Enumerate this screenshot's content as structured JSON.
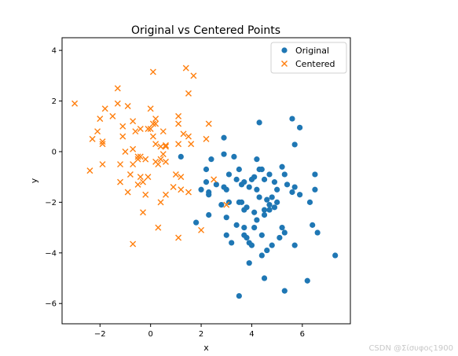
{
  "chart_data": {
    "type": "scatter",
    "title": "Original vs Centered Points",
    "xlabel": "x",
    "ylabel": "y",
    "xlim": [
      -3.5,
      7.9
    ],
    "ylim": [
      -6.8,
      4.5
    ],
    "xticks": [
      -2,
      0,
      2,
      4,
      6
    ],
    "xtick_labels": [
      "−2",
      "0",
      "2",
      "4",
      "6"
    ],
    "yticks": [
      -6,
      -4,
      -2,
      0,
      2,
      4
    ],
    "ytick_labels": [
      "−6",
      "−4",
      "−2",
      "0",
      "2",
      "4"
    ],
    "grid": false,
    "legend_position": "top-right",
    "series": [
      {
        "name": "Original",
        "marker": "circle",
        "color": "#1f77b4",
        "points": [
          [
            1.2,
            -0.2
          ],
          [
            1.8,
            -2.8
          ],
          [
            2.0,
            -1.5
          ],
          [
            2.2,
            -0.7
          ],
          [
            2.2,
            -1.2
          ],
          [
            2.3,
            -1.6
          ],
          [
            2.4,
            -0.3
          ],
          [
            2.3,
            -1.7
          ],
          [
            2.3,
            -2.5
          ],
          [
            2.6,
            -1.3
          ],
          [
            2.8,
            -2.1
          ],
          [
            2.9,
            0.55
          ],
          [
            2.9,
            -0.1
          ],
          [
            2.9,
            -1.4
          ],
          [
            3.0,
            -1.5
          ],
          [
            3.0,
            -2.6
          ],
          [
            3.0,
            -3.3
          ],
          [
            3.1,
            -2.0
          ],
          [
            3.1,
            -0.9
          ],
          [
            3.2,
            -3.6
          ],
          [
            3.3,
            -0.2
          ],
          [
            3.4,
            -1.1
          ],
          [
            3.4,
            -2.9
          ],
          [
            3.5,
            -2.0
          ],
          [
            3.5,
            -5.7
          ],
          [
            3.5,
            -0.7
          ],
          [
            3.6,
            -1.3
          ],
          [
            3.6,
            -2.0
          ],
          [
            3.7,
            -1.2
          ],
          [
            3.7,
            -2.3
          ],
          [
            3.7,
            -3.0
          ],
          [
            3.7,
            -3.3
          ],
          [
            3.8,
            -3.4
          ],
          [
            3.8,
            -2.2
          ],
          [
            3.9,
            -4.4
          ],
          [
            3.9,
            -1.4
          ],
          [
            4.0,
            -3.7
          ],
          [
            4.0,
            -1.1
          ],
          [
            4.1,
            -3.0
          ],
          [
            4.1,
            -1.0
          ],
          [
            4.1,
            -2.4
          ],
          [
            4.2,
            -0.3
          ],
          [
            4.2,
            -1.5
          ],
          [
            4.2,
            -2.7
          ],
          [
            4.3,
            1.15
          ],
          [
            4.3,
            -0.7
          ],
          [
            4.3,
            -1.8
          ],
          [
            4.4,
            -3.3
          ],
          [
            4.4,
            -4.1
          ],
          [
            4.4,
            -0.7
          ],
          [
            4.5,
            -2.3
          ],
          [
            4.5,
            -5.0
          ],
          [
            4.5,
            -1.1
          ],
          [
            4.5,
            -2.5
          ],
          [
            4.6,
            -3.9
          ],
          [
            4.6,
            -1.9
          ],
          [
            4.7,
            -0.9
          ],
          [
            4.7,
            -2.1
          ],
          [
            4.7,
            -2.3
          ],
          [
            4.8,
            -3.7
          ],
          [
            4.8,
            -1.8
          ],
          [
            4.9,
            -1.2
          ],
          [
            5.0,
            -1.5
          ],
          [
            5.0,
            -2.0
          ],
          [
            5.1,
            -3.4
          ],
          [
            5.2,
            -3.0
          ],
          [
            5.2,
            -0.6
          ],
          [
            5.3,
            -0.9
          ],
          [
            5.3,
            -3.2
          ],
          [
            5.3,
            -5.5
          ],
          [
            5.4,
            -1.3
          ],
          [
            5.6,
            1.3
          ],
          [
            5.6,
            -1.6
          ],
          [
            5.7,
            -3.7
          ],
          [
            5.7,
            0.28
          ],
          [
            5.7,
            -1.4
          ],
          [
            5.9,
            0.95
          ],
          [
            5.9,
            -1.7
          ],
          [
            6.2,
            -5.1
          ],
          [
            6.3,
            -2.0
          ],
          [
            6.4,
            -2.9
          ],
          [
            6.5,
            -1.5
          ],
          [
            6.5,
            -0.9
          ],
          [
            6.6,
            -3.2
          ],
          [
            7.3,
            -4.1
          ],
          [
            3.9,
            -3.6
          ],
          [
            4.9,
            -2.2
          ]
        ]
      },
      {
        "name": "Centered",
        "marker": "x",
        "color": "#ff7f0e",
        "points": [
          [
            -3.0,
            1.9
          ],
          [
            -2.4,
            -0.75
          ],
          [
            -2.3,
            0.5
          ],
          [
            -2.1,
            0.8
          ],
          [
            -2.0,
            1.3
          ],
          [
            -1.9,
            0.4
          ],
          [
            -1.9,
            0.3
          ],
          [
            -1.9,
            -0.5
          ],
          [
            -1.8,
            1.7
          ],
          [
            -1.5,
            1.4
          ],
          [
            -1.3,
            2.5
          ],
          [
            -1.3,
            1.9
          ],
          [
            -1.2,
            -0.5
          ],
          [
            -1.2,
            -1.2
          ],
          [
            -1.1,
            0.6
          ],
          [
            -1.1,
            1.0
          ],
          [
            -1.0,
            0.0
          ],
          [
            -0.9,
            -1.6
          ],
          [
            -0.9,
            1.8
          ],
          [
            -0.8,
            -0.9
          ],
          [
            -0.7,
            0.1
          ],
          [
            -0.7,
            -0.5
          ],
          [
            -0.7,
            1.2
          ],
          [
            -0.7,
            -3.65
          ],
          [
            -0.6,
            0.8
          ],
          [
            -0.5,
            -0.2
          ],
          [
            -0.5,
            -1.3
          ],
          [
            -0.5,
            -0.3
          ],
          [
            -0.4,
            -1.0
          ],
          [
            -0.4,
            0.9
          ],
          [
            -0.3,
            -1.2
          ],
          [
            -0.3,
            -2.4
          ],
          [
            -0.2,
            -0.3
          ],
          [
            -0.2,
            -1.7
          ],
          [
            -0.1,
            0.9
          ],
          [
            -0.1,
            -1.0
          ],
          [
            0.0,
            0.9
          ],
          [
            0.0,
            1.7
          ],
          [
            0.1,
            0.6
          ],
          [
            0.1,
            1.1
          ],
          [
            0.1,
            3.15
          ],
          [
            0.2,
            1.1
          ],
          [
            0.2,
            0.3
          ],
          [
            0.2,
            1.3
          ],
          [
            0.2,
            -0.4
          ],
          [
            0.3,
            -3.0
          ],
          [
            0.3,
            -0.5
          ],
          [
            0.4,
            -2.0
          ],
          [
            0.4,
            0.2
          ],
          [
            0.4,
            -0.3
          ],
          [
            0.5,
            0.8
          ],
          [
            0.5,
            -0.1
          ],
          [
            0.6,
            0.2
          ],
          [
            0.6,
            -1.7
          ],
          [
            0.6,
            -0.4
          ],
          [
            0.9,
            -1.4
          ],
          [
            1.0,
            -0.9
          ],
          [
            1.1,
            0.3
          ],
          [
            1.1,
            1.4
          ],
          [
            1.1,
            1.1
          ],
          [
            1.1,
            -3.4
          ],
          [
            1.2,
            -1.0
          ],
          [
            1.2,
            -1.5
          ],
          [
            1.3,
            0.7
          ],
          [
            1.4,
            3.3
          ],
          [
            1.5,
            2.3
          ],
          [
            1.5,
            0.6
          ],
          [
            1.5,
            -1.6
          ],
          [
            1.6,
            0.3
          ],
          [
            1.7,
            3.0
          ],
          [
            2.0,
            -3.1
          ],
          [
            2.2,
            0.5
          ],
          [
            2.3,
            1.1
          ],
          [
            2.5,
            -1.1
          ],
          [
            3.0,
            -2.1
          ],
          [
            0.6,
            0.25
          ],
          [
            -0.4,
            -0.2
          ]
        ]
      }
    ]
  },
  "watermark": "CSDN @Σίσυφος1900"
}
